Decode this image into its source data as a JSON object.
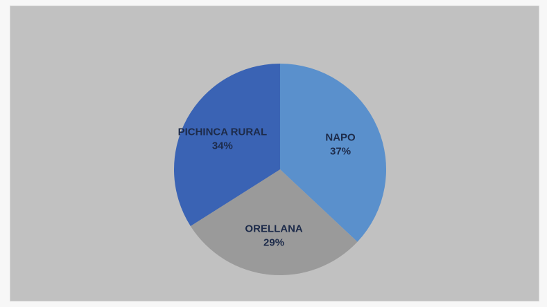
{
  "chart_data": {
    "type": "pie",
    "title": "",
    "slices": [
      {
        "label": "NAPO",
        "percent_label": "37%",
        "value": 37,
        "color": "#5a90cc"
      },
      {
        "label": "ORELLANA",
        "percent_label": "29%",
        "value": 29,
        "color": "#9a9a9a"
      },
      {
        "label": "PICHINCA RURAL",
        "percent_label": "34%",
        "value": 34,
        "color": "#3a63b4"
      }
    ],
    "start_angle_deg": 0,
    "direction": "clockwise",
    "legend": "none",
    "label_position": "inside"
  },
  "colors": {
    "background": "#c1c1c1",
    "label_text": "#1d2b4a"
  }
}
